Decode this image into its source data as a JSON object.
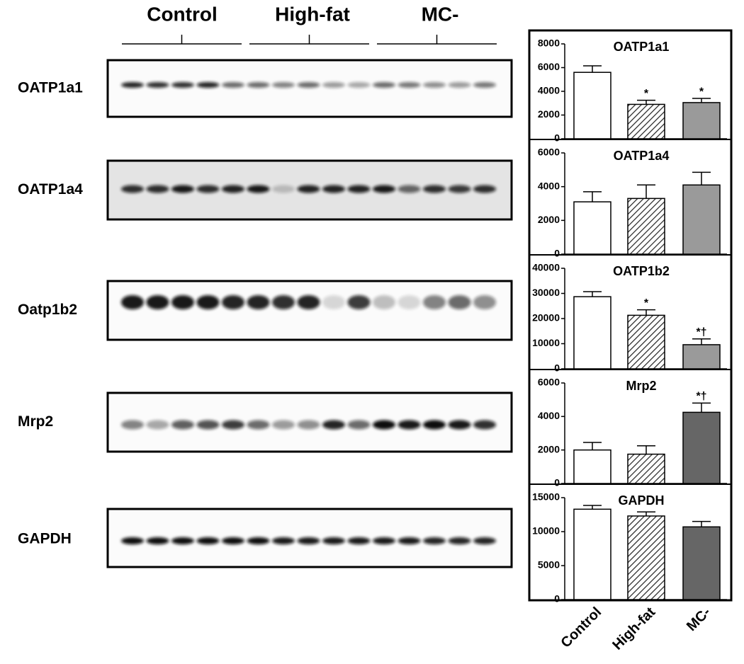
{
  "blot": {
    "groups": [
      "Control",
      "High-fat",
      "MC-"
    ],
    "rows": [
      "OATP1a1",
      "OATP1a4",
      "Oatp1b2",
      "Mrp2",
      "GAPDH"
    ]
  },
  "chart_data": [
    {
      "type": "bar",
      "title": "OATP1a1",
      "values": [
        5600,
        2900,
        3050
      ],
      "errors": [
        550,
        350,
        350
      ],
      "annotations": [
        null,
        "*",
        "*"
      ],
      "colors": [
        "#ffffff",
        "#ffffff",
        "#9a9a9a"
      ],
      "hatch": [
        false,
        true,
        false
      ],
      "ylim": [
        0,
        8000
      ],
      "yticks": [
        0,
        2000,
        4000,
        6000,
        8000
      ]
    },
    {
      "type": "bar",
      "title": "OATP1a4",
      "values": [
        3100,
        3300,
        4100
      ],
      "errors": [
        600,
        800,
        750
      ],
      "annotations": [
        null,
        null,
        null
      ],
      "colors": [
        "#ffffff",
        "#ffffff",
        "#9a9a9a"
      ],
      "hatch": [
        false,
        true,
        false
      ],
      "ylim": [
        0,
        6000
      ],
      "yticks": [
        0,
        2000,
        4000,
        6000
      ]
    },
    {
      "type": "bar",
      "title": "OATP1b2",
      "values": [
        28700,
        21300,
        9600
      ],
      "errors": [
        2000,
        2200,
        2300
      ],
      "annotations": [
        null,
        "*",
        "*†"
      ],
      "colors": [
        "#ffffff",
        "#ffffff",
        "#9a9a9a"
      ],
      "hatch": [
        false,
        true,
        false
      ],
      "ylim": [
        0,
        40000
      ],
      "yticks": [
        0,
        10000,
        20000,
        30000,
        40000
      ]
    },
    {
      "type": "bar",
      "title": "Mrp2",
      "values": [
        2000,
        1750,
        4250
      ],
      "errors": [
        450,
        500,
        550
      ],
      "annotations": [
        null,
        null,
        "*†"
      ],
      "colors": [
        "#ffffff",
        "#ffffff",
        "#666666"
      ],
      "hatch": [
        false,
        true,
        false
      ],
      "ylim": [
        0,
        6000
      ],
      "yticks": [
        0,
        2000,
        4000,
        6000
      ]
    },
    {
      "type": "bar",
      "title": "GAPDH",
      "categories": [
        "Control",
        "High-fat",
        "MC-"
      ],
      "values": [
        13300,
        12300,
        10700
      ],
      "errors": [
        550,
        600,
        800
      ],
      "annotations": [
        null,
        null,
        null
      ],
      "colors": [
        "#ffffff",
        "#ffffff",
        "#666666"
      ],
      "hatch": [
        false,
        true,
        false
      ],
      "ylim": [
        0,
        15000
      ],
      "yticks": [
        0,
        5000,
        10000,
        15000
      ]
    }
  ]
}
